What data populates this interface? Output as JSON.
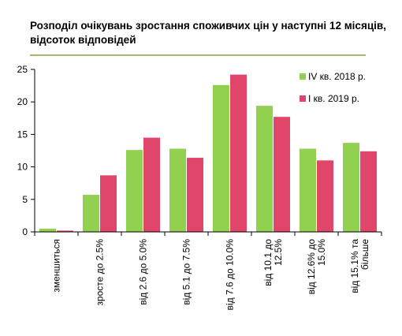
{
  "title": "Розподіл очікувань зростання споживчих цін у наступні 12 місяців, відсоток відповідей",
  "colors": {
    "series1": "#92d050",
    "series2": "#e0466a",
    "rule": "#9bbd6f"
  },
  "chart_data": {
    "type": "bar",
    "title": "Розподіл очікувань зростання споживчих цін у наступні 12 місяців, відсоток відповідей",
    "xlabel": "",
    "ylabel": "",
    "ylim": [
      0,
      25
    ],
    "yticks": [
      0,
      5,
      10,
      15,
      20,
      25
    ],
    "grid": false,
    "legend": "top-right",
    "categories": [
      [
        "зменшиться"
      ],
      [
        "зросте до 2.5%"
      ],
      [
        "від 2.6 до 5.0%"
      ],
      [
        "від 5.1 до 7.5%"
      ],
      [
        "від 7.6 до 10.0%"
      ],
      [
        "від 10.1 до",
        "12.5%"
      ],
      [
        "від 12.6% до",
        "15.0%"
      ],
      [
        "від 15.1% та",
        "більше"
      ]
    ],
    "series": [
      {
        "name": "IV кв. 2018 р.",
        "color": "#92d050",
        "values": [
          0.5,
          5.7,
          12.6,
          12.8,
          22.6,
          19.4,
          12.8,
          13.7
        ]
      },
      {
        "name": "I кв. 2019 р.",
        "color": "#e0466a",
        "values": [
          0.2,
          8.7,
          14.5,
          11.4,
          24.2,
          17.7,
          11.0,
          12.4
        ]
      }
    ]
  }
}
